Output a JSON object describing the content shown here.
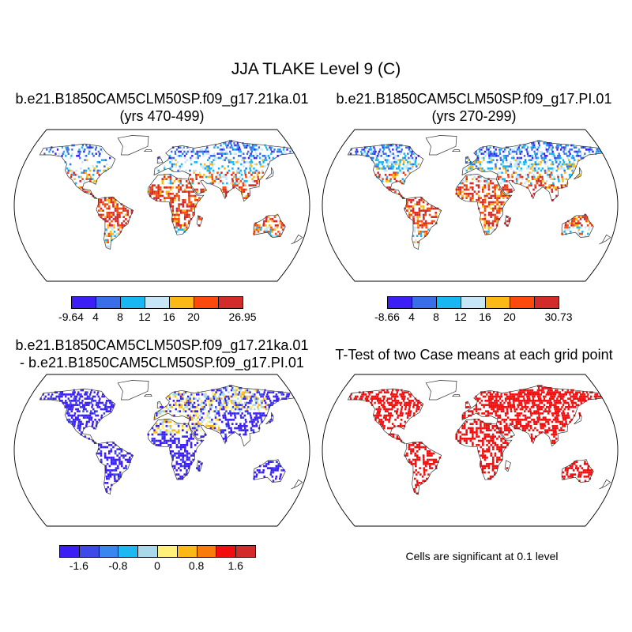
{
  "figure": {
    "title": "JJA TLAKE Level 9 (C)"
  },
  "panels": [
    {
      "id": "case1",
      "title_line1": "b.e21.B1850CAM5CLM50SP.f09_g17.21ka.01",
      "title_line2": "(yrs 470-499)",
      "legend": {
        "colors": [
          "#3b1ff5",
          "#3a6ee8",
          "#18b7f2",
          "#c7e6f5",
          "#fcb814",
          "#fb4a0c",
          "#d32b2b"
        ],
        "tick_labels": [
          "-9.64",
          "4",
          "8",
          "12",
          "16",
          "20",
          "26.95"
        ],
        "tick_index": [
          0,
          1,
          2,
          3,
          4,
          5,
          7
        ]
      }
    },
    {
      "id": "case2",
      "title_line1": "b.e21.B1850CAM5CLM50SP.f09_g17.PI.01",
      "title_line2": "(yrs 270-299)",
      "legend": {
        "colors": [
          "#3b1ff5",
          "#3a6ee8",
          "#18b7f2",
          "#c7e6f5",
          "#fcb814",
          "#fb4a0c",
          "#d32b2b"
        ],
        "tick_labels": [
          "-8.66",
          "4",
          "8",
          "12",
          "16",
          "20",
          "30.73"
        ],
        "tick_index": [
          0,
          1,
          2,
          3,
          4,
          5,
          7
        ]
      }
    },
    {
      "id": "difference",
      "title_line1": "b.e21.B1850CAM5CLM50SP.f09_g17.21ka.01",
      "title_line2": "- b.e21.B1850CAM5CLM50SP.f09_g17.PI.01",
      "legend": {
        "colors": [
          "#3b1ff5",
          "#3c4ae8",
          "#3a86f0",
          "#1cb8f2",
          "#a8d8ea",
          "#fff07a",
          "#fcb814",
          "#fb7a0c",
          "#f20e0e",
          "#d32b2b"
        ],
        "tick_labels": [
          "-1.6",
          "-0.8",
          "0",
          "0.8",
          "1.6"
        ],
        "tick_index": [
          1,
          3,
          5,
          7,
          9
        ]
      }
    },
    {
      "id": "ttest",
      "title_line1": "T-Test of two Case means at each grid point",
      "note": "Cells are significant at 0.1 level"
    }
  ]
}
